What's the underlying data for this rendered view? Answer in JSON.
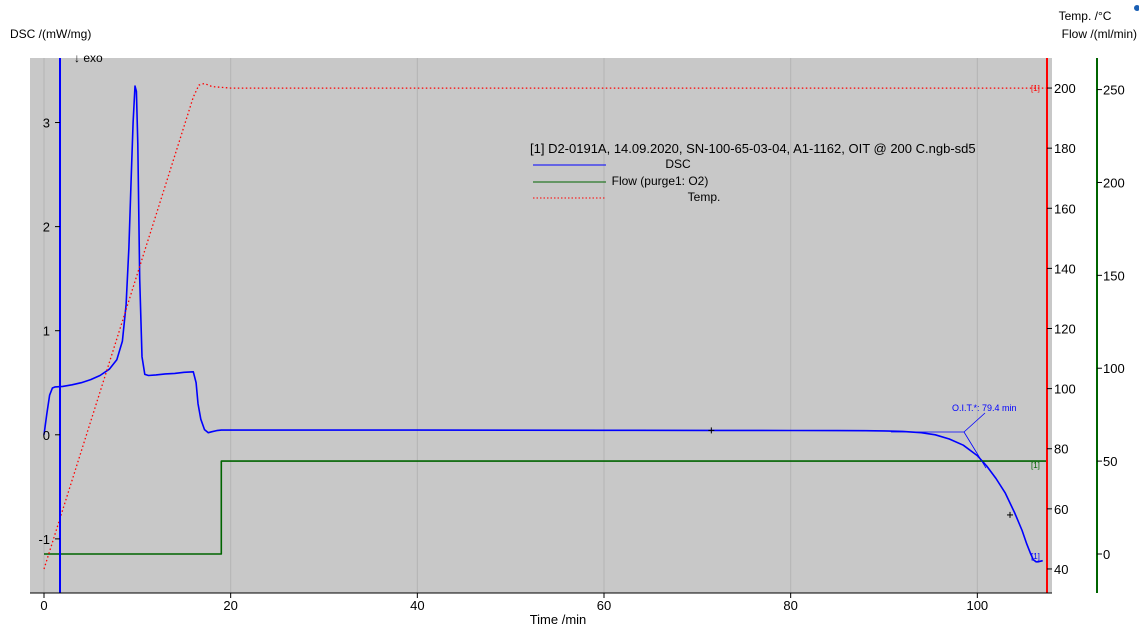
{
  "chart_data": {
    "type": "line",
    "title": "",
    "xlabel": "Time /min",
    "xlim": [
      -1.5,
      108
    ],
    "xticks": [
      0,
      20,
      40,
      60,
      80,
      100
    ],
    "axes": {
      "dsc": {
        "label": "DSC /(mW/mg)",
        "lim": [
          -1.52,
          3.62
        ],
        "ticks": [
          -1,
          0,
          1,
          2,
          3
        ],
        "color": "#0000ff"
      },
      "temp": {
        "label": "Temp. /°C",
        "lim": [
          32,
          210
        ],
        "ticks": [
          40,
          60,
          80,
          100,
          120,
          140,
          160,
          180,
          200
        ],
        "color": "#ff0000"
      },
      "flow": {
        "label": "Flow /(ml/min)",
        "lim": [
          -21,
          267
        ],
        "ticks": [
          0,
          50,
          100,
          150,
          200,
          250
        ],
        "color": "#006400"
      }
    },
    "exo_label": "↓ exo",
    "legend": {
      "position": "top-center",
      "header": "[1]  D2-0191A, 14.09.2020, SN-100-65-03-04, A1-1162, OIT @ 200 C.ngb-sd5",
      "entries": [
        "DSC",
        "Flow (purge1: O2)",
        "Temp."
      ]
    },
    "series": [
      {
        "name": "DSC",
        "axis": "dsc",
        "color": "#0000ff",
        "style": "solid",
        "x": [
          0,
          0.3,
          0.6,
          0.9,
          1.2,
          2,
          3,
          4,
          5,
          6,
          7,
          7.8,
          8.4,
          8.8,
          9.1,
          9.35,
          9.55,
          9.75,
          9.9,
          10.05,
          10.25,
          10.5,
          10.8,
          11.2,
          12,
          13,
          14,
          15,
          16,
          16.3,
          16.5,
          16.8,
          17.2,
          17.6,
          18,
          18.5,
          19,
          20,
          30,
          40,
          50,
          60,
          71.5,
          80,
          85,
          88,
          90,
          92,
          94,
          95.5,
          97,
          98.5,
          100,
          101,
          102,
          103,
          104,
          104.8,
          105.3,
          105.7,
          106,
          106.3,
          106.5,
          107
        ],
        "y": [
          0.0,
          0.2,
          0.38,
          0.45,
          0.46,
          0.465,
          0.48,
          0.5,
          0.53,
          0.57,
          0.63,
          0.72,
          0.9,
          1.25,
          1.8,
          2.5,
          3.0,
          3.35,
          3.3,
          2.8,
          1.5,
          0.75,
          0.58,
          0.57,
          0.575,
          0.585,
          0.59,
          0.6,
          0.605,
          0.5,
          0.3,
          0.15,
          0.05,
          0.02,
          0.03,
          0.04,
          0.045,
          0.045,
          0.045,
          0.045,
          0.044,
          0.043,
          0.042,
          0.041,
          0.04,
          0.039,
          0.037,
          0.033,
          0.02,
          0.0,
          -0.04,
          -0.1,
          -0.2,
          -0.3,
          -0.42,
          -0.56,
          -0.75,
          -0.92,
          -1.05,
          -1.14,
          -1.2,
          -1.22,
          -1.22,
          -1.21
        ],
        "end_label": "[1]"
      },
      {
        "name": "Flow (purge1: O2)",
        "axis": "flow",
        "color": "#006400",
        "style": "solid",
        "x": [
          0,
          19,
          19,
          107.5
        ],
        "y": [
          0,
          0,
          50,
          50
        ],
        "end_label": "[1]"
      },
      {
        "name": "Temp.",
        "axis": "temp",
        "color": "#ff0000",
        "style": "dotted",
        "x": [
          0,
          16,
          16.6,
          17.2,
          18,
          20,
          107.5
        ],
        "y": [
          40,
          197,
          201,
          201.5,
          200.5,
          200,
          200
        ],
        "end_label": "[1]"
      }
    ],
    "annotations": [
      {
        "text": "O.I.T.*: 79.4 min",
        "color": "#0000ff"
      }
    ]
  }
}
